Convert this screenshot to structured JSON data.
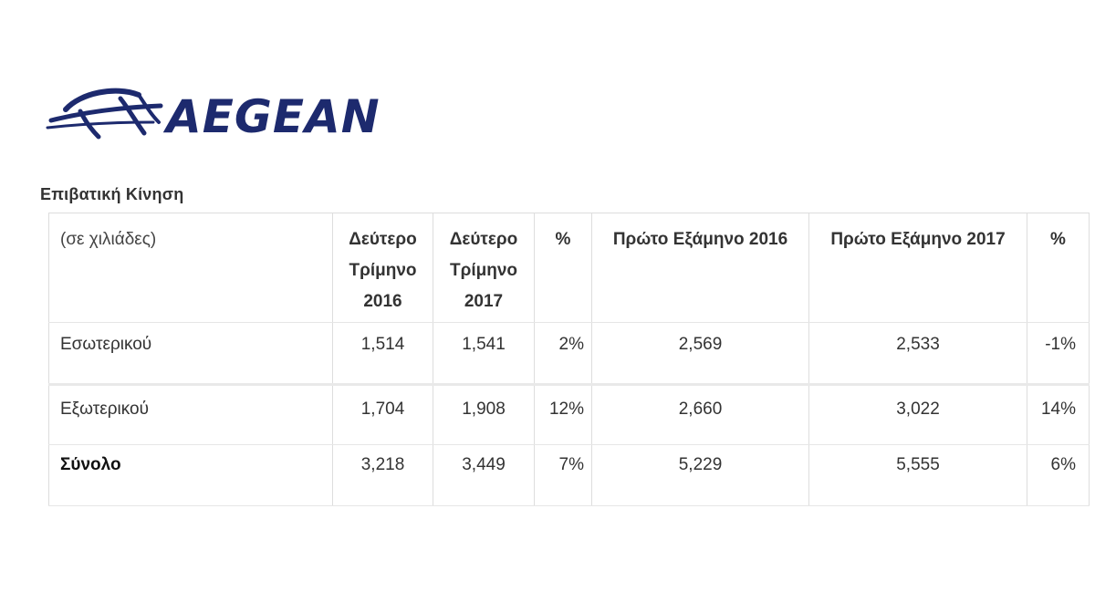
{
  "logo": {
    "text": "AEGEAN",
    "color": "#1d2a6e"
  },
  "section_title": "Επιβατική Κίνηση",
  "table": {
    "headers": [
      "(σε χιλιάδες)",
      "Δεύτερο Τρίμηνο 2016",
      "Δεύτερο Τρίμηνο 2017",
      "%",
      "Πρώτο Εξάμηνο 2016",
      "Πρώτο Εξάμηνο 2017",
      "%"
    ],
    "rows": [
      [
        "Εσωτερικού",
        "1,514",
        "1,541",
        "2%",
        "2,569",
        "2,533",
        "-1%"
      ],
      [
        "Εξωτερικού",
        "1,704",
        "1,908",
        "12%",
        "2,660",
        "3,022",
        "14%"
      ],
      [
        "Σύνολο",
        "3,218",
        "3,449",
        "7%",
        "5,229",
        "5,555",
        "6%"
      ]
    ]
  }
}
